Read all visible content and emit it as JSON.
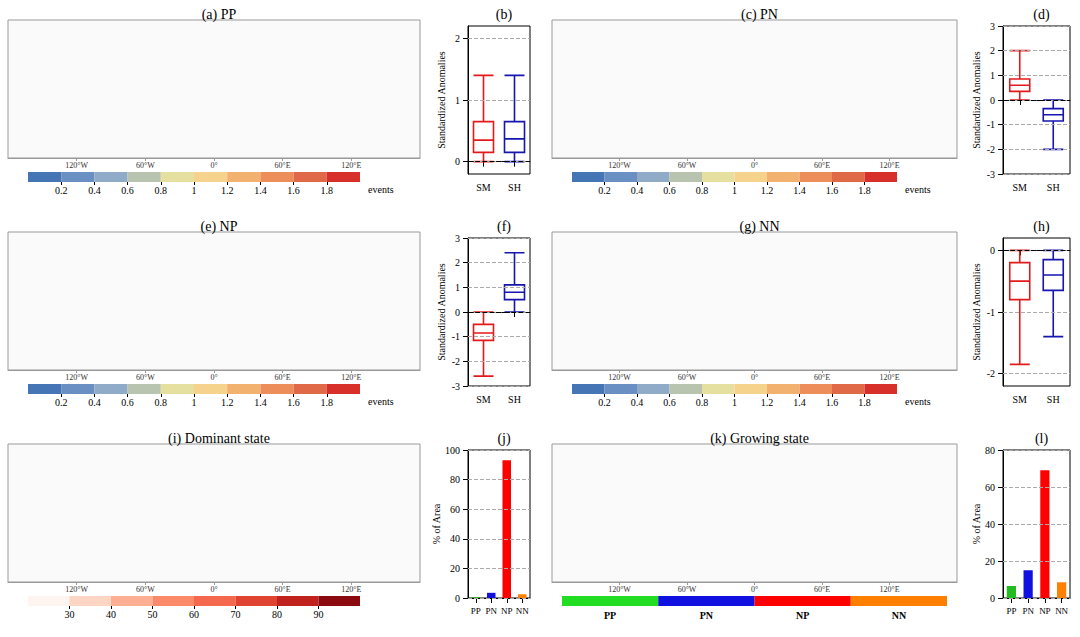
{
  "chart_data": [
    {
      "type": "map",
      "title": "(a) PP",
      "xlim": [
        -180,
        180
      ],
      "xticks": [
        {
          "value": -120,
          "label": "120°W"
        },
        {
          "value": -60,
          "label": "60°W"
        },
        {
          "value": 0,
          "label": "0°"
        },
        {
          "value": 60,
          "label": "60°E"
        },
        {
          "value": 120,
          "label": "120°E"
        }
      ],
      "colorbar": {
        "bounds": [
          0,
          0.2,
          0.4,
          0.6,
          0.8,
          1,
          1.2,
          1.4,
          1.6,
          1.8,
          2
        ],
        "colors": [
          "#4575b4",
          "#6a8fc2",
          "#90abc8",
          "#b8c4b0",
          "#e6e0a0",
          "#f6d38c",
          "#f3b170",
          "#ec8d5a",
          "#e06a48",
          "#d7302a"
        ],
        "ticks": [
          0.2,
          0.4,
          0.6,
          0.8,
          1,
          1.2,
          1.4,
          1.6,
          1.8
        ],
        "label": "events"
      }
    },
    {
      "type": "boxplot",
      "title": "(b)",
      "ylabel": "Standardized Anomalies",
      "categories": [
        "SM",
        "SH"
      ],
      "values": [
        [
          0,
          0.15,
          0.35,
          0.65,
          1.4
        ],
        [
          0,
          0.15,
          0.37,
          0.65,
          1.4
        ]
      ],
      "colors": [
        "#e31a1c",
        "#1515b0"
      ],
      "reference_line": 0,
      "ylim": [
        -0.2,
        2.2
      ],
      "yticks": [
        0,
        1,
        2
      ],
      "grid": true
    },
    {
      "type": "map",
      "title": "(c) PN",
      "xlim": [
        -180,
        180
      ],
      "xticks": [
        {
          "value": -120,
          "label": "120°W"
        },
        {
          "value": -60,
          "label": "60°W"
        },
        {
          "value": 0,
          "label": "0°"
        },
        {
          "value": 60,
          "label": "60°E"
        },
        {
          "value": 120,
          "label": "120°E"
        }
      ],
      "colorbar": {
        "bounds": [
          0,
          0.2,
          0.4,
          0.6,
          0.8,
          1,
          1.2,
          1.4,
          1.6,
          1.8,
          2
        ],
        "colors": [
          "#4575b4",
          "#6a8fc2",
          "#90abc8",
          "#b8c4b0",
          "#e6e0a0",
          "#f6d38c",
          "#f3b170",
          "#ec8d5a",
          "#e06a48",
          "#d7302a"
        ],
        "ticks": [
          0.2,
          0.4,
          0.6,
          0.8,
          1,
          1.2,
          1.4,
          1.6,
          1.8
        ],
        "label": "events"
      }
    },
    {
      "type": "boxplot",
      "title": "(d)",
      "ylabel": "Standardized Anomalies",
      "categories": [
        "SM",
        "SH"
      ],
      "values": [
        [
          0,
          0.35,
          0.6,
          0.85,
          2.0
        ],
        [
          -2.0,
          -0.85,
          -0.6,
          -0.35,
          0
        ]
      ],
      "colors": [
        "#e31a1c",
        "#1515b0"
      ],
      "reference_line": 0,
      "ylim": [
        -3,
        3
      ],
      "yticks": [
        -3,
        -2,
        -1,
        0,
        1,
        2,
        3
      ],
      "grid": true
    },
    {
      "type": "map",
      "title": "(e) NP",
      "xlim": [
        -180,
        180
      ],
      "xticks": [
        {
          "value": -120,
          "label": "120°W"
        },
        {
          "value": -60,
          "label": "60°W"
        },
        {
          "value": 0,
          "label": "0°"
        },
        {
          "value": 60,
          "label": "60°E"
        },
        {
          "value": 120,
          "label": "120°E"
        }
      ],
      "colorbar": {
        "bounds": [
          0,
          0.2,
          0.4,
          0.6,
          0.8,
          1,
          1.2,
          1.4,
          1.6,
          1.8,
          2
        ],
        "colors": [
          "#4575b4",
          "#6a8fc2",
          "#90abc8",
          "#b8c4b0",
          "#e6e0a0",
          "#f6d38c",
          "#f3b170",
          "#ec8d5a",
          "#e06a48",
          "#d7302a"
        ],
        "ticks": [
          0.2,
          0.4,
          0.6,
          0.8,
          1,
          1.2,
          1.4,
          1.6,
          1.8
        ],
        "label": "events"
      }
    },
    {
      "type": "boxplot",
      "title": "(f)",
      "ylabel": "Standardized Anomalies",
      "categories": [
        "SM",
        "SH"
      ],
      "values": [
        [
          -2.6,
          -1.15,
          -0.85,
          -0.5,
          0
        ],
        [
          0,
          0.5,
          0.8,
          1.1,
          2.4
        ]
      ],
      "colors": [
        "#e31a1c",
        "#1515b0"
      ],
      "reference_line": 0,
      "ylim": [
        -3,
        3
      ],
      "yticks": [
        -3,
        -2,
        -1,
        0,
        1,
        2,
        3
      ],
      "grid": true
    },
    {
      "type": "map",
      "title": "(g) NN",
      "xlim": [
        -180,
        180
      ],
      "xticks": [
        {
          "value": -120,
          "label": "120°W"
        },
        {
          "value": -60,
          "label": "60°W"
        },
        {
          "value": 0,
          "label": "0°"
        },
        {
          "value": 60,
          "label": "60°E"
        },
        {
          "value": 120,
          "label": "120°E"
        }
      ],
      "colorbar": {
        "bounds": [
          0,
          0.2,
          0.4,
          0.6,
          0.8,
          1,
          1.2,
          1.4,
          1.6,
          1.8,
          2
        ],
        "colors": [
          "#4575b4",
          "#6a8fc2",
          "#90abc8",
          "#b8c4b0",
          "#e6e0a0",
          "#f6d38c",
          "#f3b170",
          "#ec8d5a",
          "#e06a48",
          "#d7302a"
        ],
        "ticks": [
          0.2,
          0.4,
          0.6,
          0.8,
          1,
          1.2,
          1.4,
          1.6,
          1.8
        ],
        "label": "events"
      }
    },
    {
      "type": "boxplot",
      "title": "(h)",
      "ylabel": "Standardized Anomalies",
      "categories": [
        "SM",
        "SH"
      ],
      "values": [
        [
          -1.85,
          -0.8,
          -0.5,
          -0.2,
          0
        ],
        [
          -1.4,
          -0.65,
          -0.4,
          -0.15,
          0
        ]
      ],
      "colors": [
        "#e31a1c",
        "#1515b0"
      ],
      "reference_line": 0,
      "ylim": [
        -2.2,
        0.2
      ],
      "yticks": [
        -2,
        -1,
        0
      ],
      "grid": true
    },
    {
      "type": "map",
      "title": "(i) Dominant state",
      "xlim": [
        -180,
        180
      ],
      "xticks": [
        {
          "value": -120,
          "label": "120°W"
        },
        {
          "value": -60,
          "label": "60°W"
        },
        {
          "value": 0,
          "label": "0°"
        },
        {
          "value": 60,
          "label": "60°E"
        },
        {
          "value": 120,
          "label": "120°E"
        }
      ],
      "colorbar": {
        "bounds": [
          20,
          30,
          40,
          50,
          60,
          70,
          80,
          90,
          100
        ],
        "colors": [
          "#fff5f0",
          "#fdd5c4",
          "#fcaf93",
          "#fb8a6a",
          "#f4694d",
          "#e0432f",
          "#c0221e",
          "#8b0a0f"
        ],
        "ticks": [
          30,
          40,
          50,
          60,
          70,
          80,
          90
        ]
      }
    },
    {
      "type": "bar",
      "title": "(j)",
      "ylabel": "% of Area",
      "categories": [
        "PP",
        "PN",
        "NP",
        "NN"
      ],
      "values": [
        0.5,
        3.5,
        93,
        2.5
      ],
      "colors": [
        "#22bb22",
        "#1010e0",
        "#ff0000",
        "#ff8000"
      ],
      "ylim": [
        0,
        100
      ],
      "yticks": [
        0,
        20,
        40,
        60,
        80,
        100
      ],
      "grid": true
    },
    {
      "type": "map",
      "title": "(k) Growing state",
      "xlim": [
        -180,
        180
      ],
      "xticks": [
        {
          "value": -120,
          "label": "120°W"
        },
        {
          "value": -60,
          "label": "60°W"
        },
        {
          "value": 0,
          "label": "0°"
        },
        {
          "value": 60,
          "label": "60°E"
        },
        {
          "value": 120,
          "label": "120°E"
        }
      ],
      "colorbar": {
        "categories": [
          "PP",
          "PN",
          "NP",
          "NN"
        ],
        "colors": [
          "#22dd22",
          "#1010e0",
          "#ff0000",
          "#ff8000"
        ]
      }
    },
    {
      "type": "bar",
      "title": "(l)",
      "ylabel": "% of Area",
      "categories": [
        "PP",
        "PN",
        "NP",
        "NN"
      ],
      "values": [
        6.5,
        15,
        69,
        8.5
      ],
      "colors": [
        "#22bb22",
        "#1010e0",
        "#ff0000",
        "#ff8000"
      ],
      "ylim": [
        0,
        80
      ],
      "yticks": [
        0,
        20,
        40,
        60,
        80
      ],
      "grid": true
    }
  ]
}
